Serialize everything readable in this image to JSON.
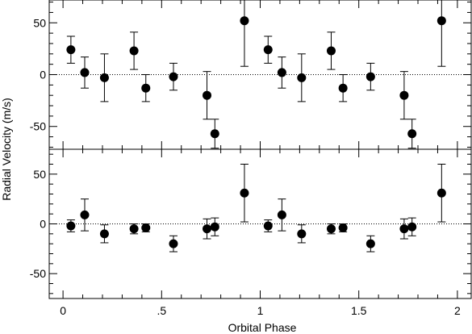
{
  "chart_data": {
    "type": "scatter",
    "xlabel": "Orbital Phase",
    "ylabel": "Radial Velocity (m/s)",
    "xlim": [
      -0.07,
      2.07
    ],
    "x_ticks": [
      0,
      0.5,
      1,
      1.5,
      2
    ],
    "x_tick_labels": [
      "0",
      ".5",
      "1",
      "1.5",
      "2"
    ],
    "zero_line": "dotted",
    "panels": [
      {
        "name": "top",
        "ylim": [
          -72,
          72
        ],
        "y_ticks": [
          -50,
          0,
          50
        ],
        "y_tick_labels": [
          "-50",
          "0",
          "50"
        ],
        "points": [
          {
            "x": 0.04,
            "y": 24,
            "err": 13
          },
          {
            "x": 0.11,
            "y": 2,
            "err": 15
          },
          {
            "x": 0.21,
            "y": -3,
            "err": 23
          },
          {
            "x": 0.36,
            "y": 23,
            "err": 18
          },
          {
            "x": 0.42,
            "y": -13,
            "err": 13
          },
          {
            "x": 0.56,
            "y": -2,
            "err": 13
          },
          {
            "x": 0.73,
            "y": -20,
            "err": 23
          },
          {
            "x": 0.77,
            "y": -57,
            "err": 14
          },
          {
            "x": 0.92,
            "y": 52,
            "err": 44
          },
          {
            "x": 1.04,
            "y": 24,
            "err": 13
          },
          {
            "x": 1.11,
            "y": 2,
            "err": 15
          },
          {
            "x": 1.21,
            "y": -3,
            "err": 23
          },
          {
            "x": 1.36,
            "y": 23,
            "err": 18
          },
          {
            "x": 1.42,
            "y": -13,
            "err": 13
          },
          {
            "x": 1.56,
            "y": -2,
            "err": 13
          },
          {
            "x": 1.73,
            "y": -20,
            "err": 23
          },
          {
            "x": 1.77,
            "y": -57,
            "err": 14
          },
          {
            "x": 1.92,
            "y": 52,
            "err": 44
          }
        ]
      },
      {
        "name": "bottom",
        "ylim": [
          -75,
          75
        ],
        "y_ticks": [
          -50,
          0,
          50
        ],
        "y_tick_labels": [
          "-50",
          "0",
          "50"
        ],
        "points": [
          {
            "x": 0.04,
            "y": -2,
            "err": 6
          },
          {
            "x": 0.11,
            "y": 9,
            "err": 16
          },
          {
            "x": 0.21,
            "y": -10,
            "err": 9
          },
          {
            "x": 0.36,
            "y": -5,
            "err": 5
          },
          {
            "x": 0.42,
            "y": -4,
            "err": 4
          },
          {
            "x": 0.56,
            "y": -20,
            "err": 8
          },
          {
            "x": 0.73,
            "y": -5,
            "err": 10
          },
          {
            "x": 0.77,
            "y": -3,
            "err": 9
          },
          {
            "x": 0.92,
            "y": 31,
            "err": 29
          },
          {
            "x": 1.04,
            "y": -2,
            "err": 6
          },
          {
            "x": 1.11,
            "y": 9,
            "err": 16
          },
          {
            "x": 1.21,
            "y": -10,
            "err": 9
          },
          {
            "x": 1.36,
            "y": -5,
            "err": 5
          },
          {
            "x": 1.42,
            "y": -4,
            "err": 4
          },
          {
            "x": 1.56,
            "y": -20,
            "err": 8
          },
          {
            "x": 1.73,
            "y": -5,
            "err": 10
          },
          {
            "x": 1.77,
            "y": -3,
            "err": 9
          },
          {
            "x": 1.92,
            "y": 31,
            "err": 29
          }
        ]
      }
    ]
  }
}
